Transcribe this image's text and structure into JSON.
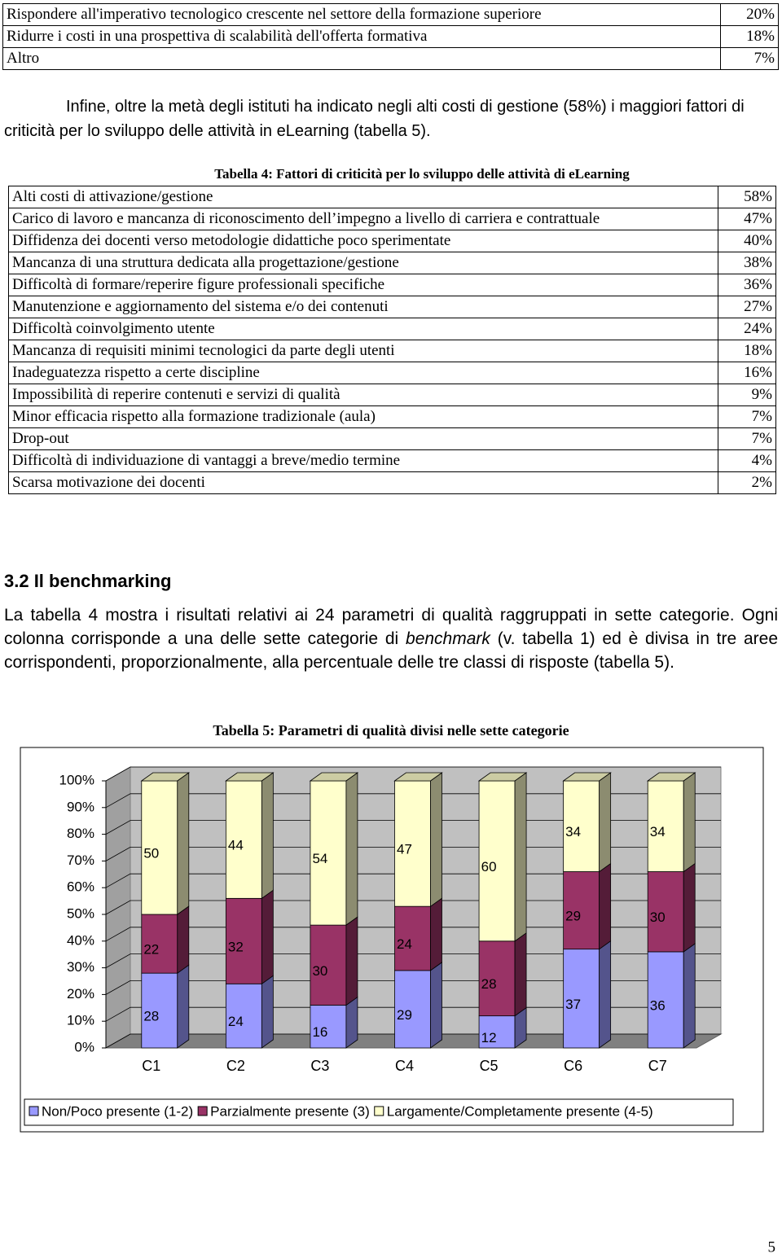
{
  "table_top": {
    "rows": [
      [
        "Rispondere all'imperativo tecnologico crescente nel settore della formazione superiore",
        "20%"
      ],
      [
        "Ridurre i costi in una prospettiva di scalabilità dell'offerta formativa",
        "18%"
      ],
      [
        "Altro",
        "7%"
      ]
    ]
  },
  "paragraph1": "Infine, oltre la metà degli istituti ha indicato negli alti costi di gestione (58%) i maggiori fattori di criticità per lo sviluppo delle attività in eLearning (tabella 5).",
  "table4": {
    "caption": "Tabella 4: Fattori di criticità per lo sviluppo delle attività di eLearning",
    "rows": [
      [
        "Alti costi di attivazione/gestione",
        "58%"
      ],
      [
        "Carico di lavoro e mancanza di riconoscimento dell’impegno a livello di carriera e contrattuale",
        "47%"
      ],
      [
        "Diffidenza dei docenti verso metodologie didattiche poco sperimentate",
        "40%"
      ],
      [
        "Mancanza di una struttura dedicata alla progettazione/gestione",
        "38%"
      ],
      [
        "Difficoltà di formare/reperire figure professionali specifiche",
        "36%"
      ],
      [
        "Manutenzione e aggiornamento del sistema e/o dei contenuti",
        "27%"
      ],
      [
        "Difficoltà coinvolgimento utente",
        "24%"
      ],
      [
        "Mancanza di requisiti minimi tecnologici da parte degli utenti",
        "18%"
      ],
      [
        "Inadeguatezza rispetto a certe discipline",
        "16%"
      ],
      [
        "Impossibilità di reperire contenuti e servizi di qualità",
        "9%"
      ],
      [
        "Minor efficacia rispetto alla formazione tradizionale (aula)",
        "7%"
      ],
      [
        "Drop-out",
        "7%"
      ],
      [
        "Difficoltà di individuazione di vantaggi a breve/medio termine",
        "4%"
      ],
      [
        "Scarsa motivazione dei docenti",
        "2%"
      ]
    ]
  },
  "section_heading": "3.2 Il benchmarking",
  "paragraph2": [
    "La tabella 4 mostra i risultati relativi ai 24 parametri di qualità raggruppati in sette categorie. Ogni colonna corrisponde a una delle sette categorie di ",
    "benchmark",
    " (v. tabella 1) ed è divisa in tre aree corrispondenti, proporzionalmente, alla percentuale delle tre classi di risposte (tabella 5)."
  ],
  "chart_data": {
    "type": "stacked-bar-3d",
    "title": "Tabella 5: Parametri di qualità divisi nelle sette categorie",
    "categories": [
      "C1",
      "C2",
      "C3",
      "C4",
      "C5",
      "C6",
      "C7"
    ],
    "series": [
      {
        "name": "Non/Poco presente (1-2)",
        "color": "#9999ff",
        "values": [
          28,
          24,
          16,
          29,
          12,
          37,
          36
        ]
      },
      {
        "name": "Parzialmente presente (3)",
        "color": "#993366",
        "values": [
          22,
          32,
          30,
          24,
          28,
          29,
          30
        ]
      },
      {
        "name": "Largamente/Completamente presente (4-5)",
        "color": "#ffffcc",
        "values": [
          50,
          44,
          54,
          47,
          60,
          34,
          34
        ]
      }
    ],
    "ylim": [
      0,
      100
    ],
    "yticks": [
      {
        "value": 0,
        "label": "0%"
      },
      {
        "value": 10,
        "label": "10%"
      },
      {
        "value": 20,
        "label": "20%"
      },
      {
        "value": 30,
        "label": "30%"
      },
      {
        "value": 40,
        "label": "40%"
      },
      {
        "value": 50,
        "label": "50%"
      },
      {
        "value": 60,
        "label": "60%"
      },
      {
        "value": 70,
        "label": "70%"
      },
      {
        "value": 80,
        "label": "80%"
      },
      {
        "value": 90,
        "label": "90%"
      },
      {
        "value": 100,
        "label": "100%"
      }
    ],
    "grid": true,
    "legend": "bottom"
  },
  "page_number": "5"
}
